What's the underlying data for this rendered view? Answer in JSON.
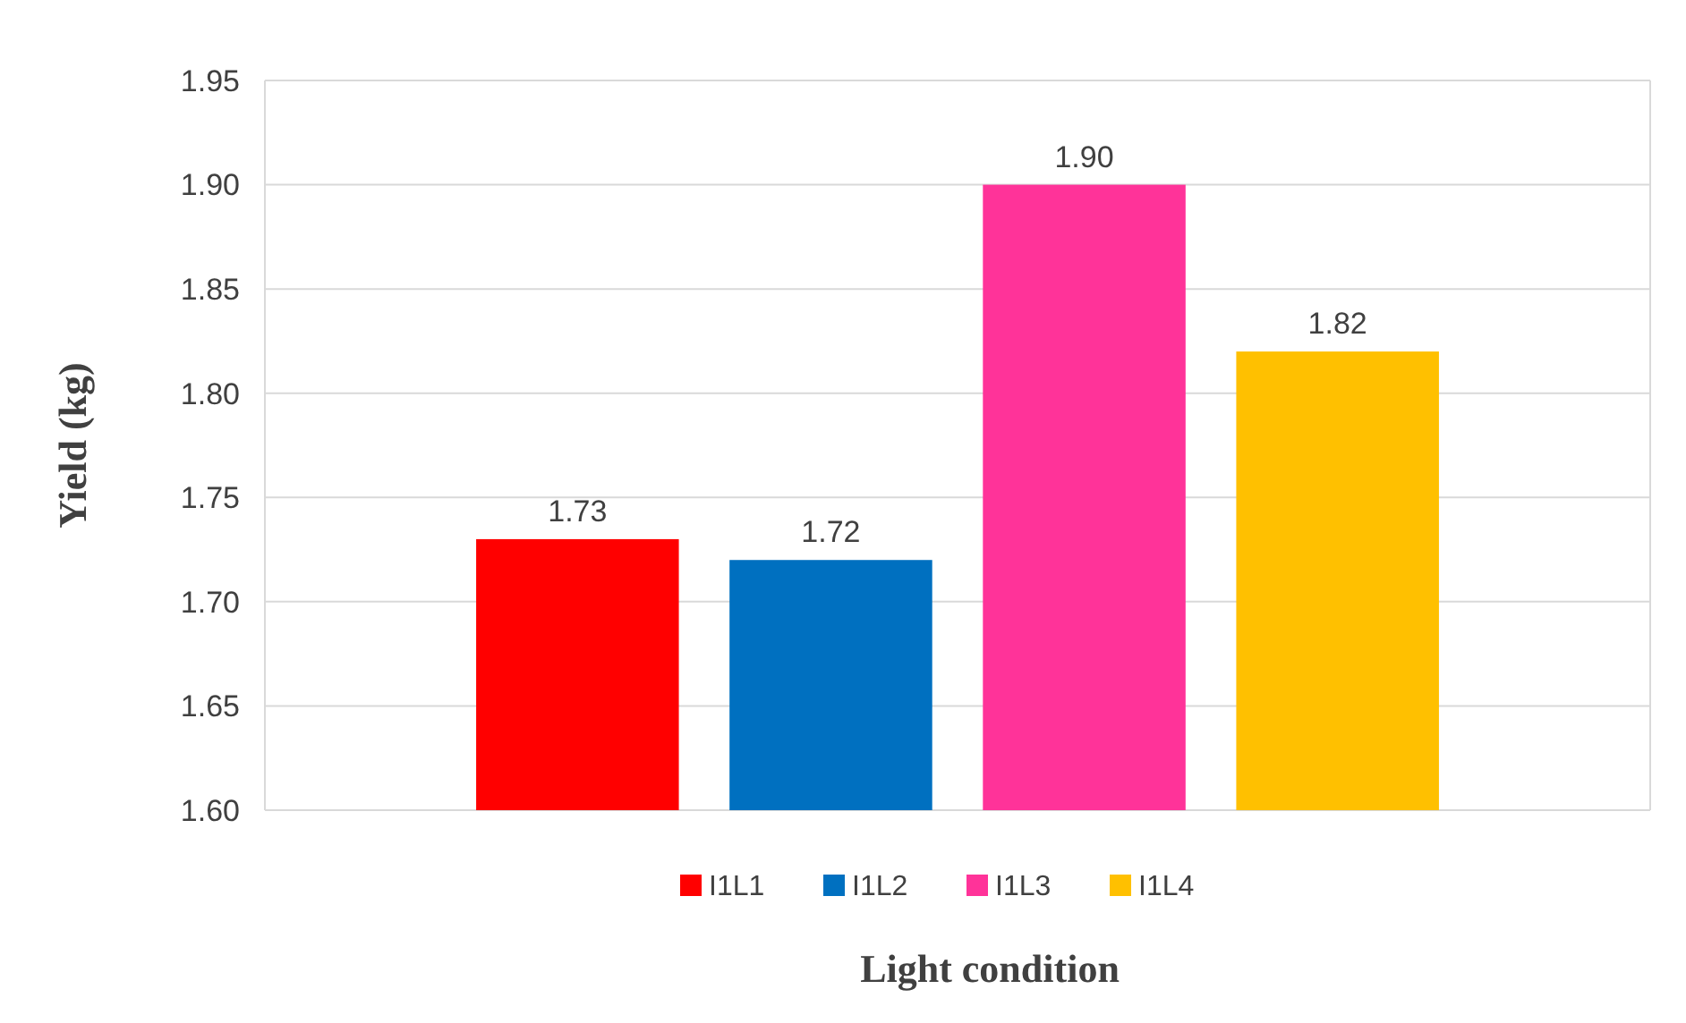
{
  "chart_data": {
    "type": "bar",
    "xlabel": "Light condition",
    "ylabel": "Yield (kg)",
    "categories": [
      null
    ],
    "series": [
      {
        "name": "I1L1",
        "color": "#ff0000",
        "values": [
          1.73
        ],
        "value_labels": [
          "1.73"
        ]
      },
      {
        "name": "I1L2",
        "color": "#0070c0",
        "values": [
          1.72
        ],
        "value_labels": [
          "1.72"
        ]
      },
      {
        "name": "I1L3",
        "color": "#ff3399",
        "values": [
          1.9
        ],
        "value_labels": [
          "1.90"
        ]
      },
      {
        "name": "I1L4",
        "color": "#ffc000",
        "values": [
          1.82
        ],
        "value_labels": [
          "1.82"
        ]
      }
    ],
    "ylim": [
      1.6,
      1.95
    ],
    "yticks": [
      {
        "value": 1.6,
        "label": "1.60"
      },
      {
        "value": 1.65,
        "label": "1.65"
      },
      {
        "value": 1.7,
        "label": "1.70"
      },
      {
        "value": 1.75,
        "label": "1.75"
      },
      {
        "value": 1.8,
        "label": "1.80"
      },
      {
        "value": 1.85,
        "label": "1.85"
      },
      {
        "value": 1.9,
        "label": "1.90"
      },
      {
        "value": 1.95,
        "label": "1.95"
      }
    ],
    "grid": "y",
    "legend": "bottom"
  }
}
